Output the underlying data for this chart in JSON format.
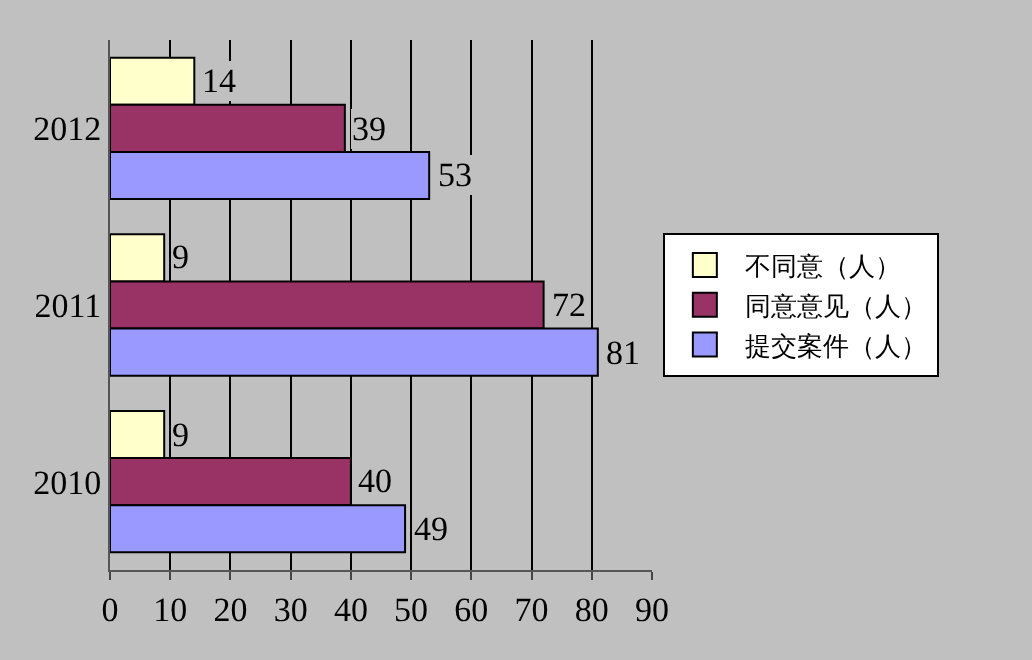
{
  "chart_data": {
    "type": "bar",
    "orientation": "horizontal",
    "categories": [
      "2012",
      "2011",
      "2010"
    ],
    "series": [
      {
        "name": "不同意（人）",
        "color": "#ffffcc",
        "values": [
          14,
          9,
          9
        ]
      },
      {
        "name": "同意意见（人）",
        "color": "#993366",
        "values": [
          39,
          72,
          40
        ]
      },
      {
        "name": "提交案件（人）",
        "color": "#9999ff",
        "values": [
          53,
          81,
          49
        ]
      }
    ],
    "xlim": [
      0,
      90
    ],
    "xticks": [
      0,
      10,
      20,
      30,
      40,
      50,
      60,
      70,
      80,
      90
    ],
    "grid": "x",
    "legend": "right",
    "data_labels": true
  }
}
